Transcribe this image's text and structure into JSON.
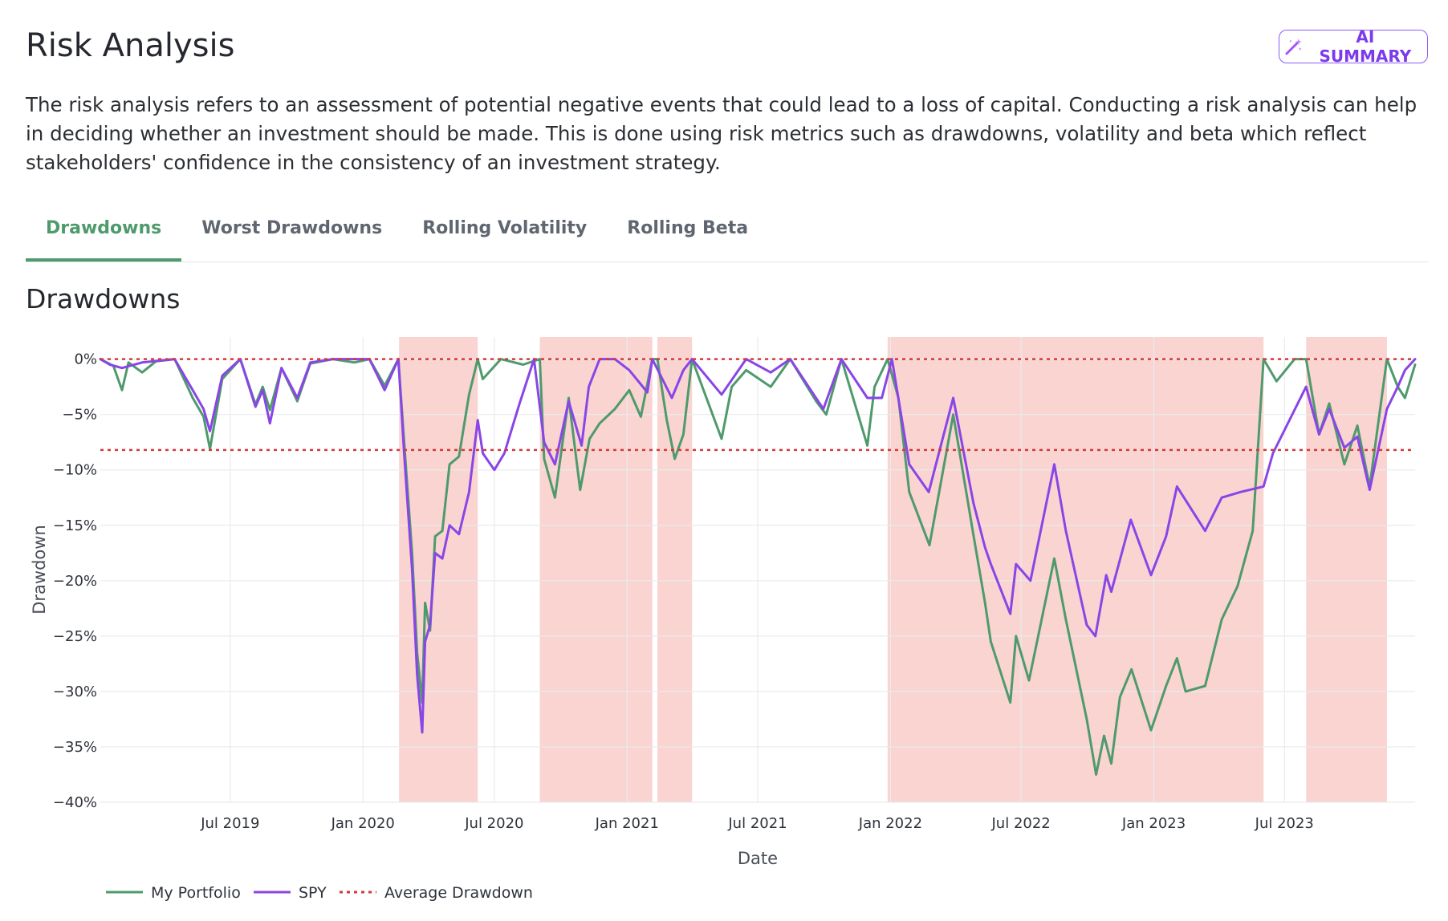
{
  "header": {
    "title": "Risk Analysis",
    "ai_button_label": "AI SUMMARY",
    "ai_button_icon": "magic-wand-icon"
  },
  "intro": "The risk analysis refers to an assessment of potential negative events that could lead to a loss of capital. Conducting a risk analysis can help in deciding whether an investment should be made. This is done using risk metrics such as drawdowns, volatility and beta which reflect stakeholders' confidence in the consistency of an investment strategy.",
  "tabs": [
    {
      "label": "Drawdowns",
      "active": true
    },
    {
      "label": "Worst Drawdowns",
      "active": false
    },
    {
      "label": "Rolling Volatility",
      "active": false
    },
    {
      "label": "Rolling Beta",
      "active": false
    }
  ],
  "section_title": "Drawdowns",
  "colors": {
    "portfolio": "#4f9a6c",
    "spy": "#8a45e6",
    "average": "#d23a3a",
    "shade": "#f7c5c2",
    "accent": "#4f9a6c",
    "ai": "#7c3aed"
  },
  "chart_data": {
    "type": "line",
    "xlabel": "Date",
    "ylabel": "Drawdown",
    "x_range": [
      "2019-01-02",
      "2023-12-29"
    ],
    "ylim": [
      -40,
      2
    ],
    "y_ticks": [
      0,
      -5,
      -10,
      -15,
      -20,
      -25,
      -30,
      -35,
      -40
    ],
    "y_tick_labels": [
      "0%",
      "−5%",
      "−10%",
      "−15%",
      "−20%",
      "−25%",
      "−30%",
      "−35%",
      "−40%"
    ],
    "x_ticks": [
      "2019-07-01",
      "2020-01-01",
      "2020-07-01",
      "2021-01-01",
      "2021-07-01",
      "2022-01-01",
      "2022-07-01",
      "2023-01-01",
      "2023-07-01"
    ],
    "x_tick_labels": [
      "Jul 2019",
      "Jan 2020",
      "Jul 2020",
      "Jan 2021",
      "Jul 2021",
      "Jan 2022",
      "Jul 2022",
      "Jan 2023",
      "Jul 2023"
    ],
    "grid": true,
    "legend": "bottom-left",
    "average_drawdown": -8.2,
    "shaded_periods": [
      [
        "2020-02-20",
        "2020-06-08"
      ],
      [
        "2020-09-02",
        "2021-02-05"
      ],
      [
        "2021-02-12",
        "2021-04-01"
      ],
      [
        "2021-12-28",
        "2023-06-02"
      ],
      [
        "2023-07-31",
        "2023-11-20"
      ]
    ],
    "series": [
      {
        "name": "My Portfolio",
        "points": [
          [
            "2019-01-02",
            0
          ],
          [
            "2019-01-20",
            -0.6
          ],
          [
            "2019-02-01",
            -2.8
          ],
          [
            "2019-02-10",
            -0.3
          ],
          [
            "2019-03-01",
            -1.2
          ],
          [
            "2019-03-20",
            -0.2
          ],
          [
            "2019-04-15",
            0
          ],
          [
            "2019-05-10",
            -3.5
          ],
          [
            "2019-05-25",
            -5.2
          ],
          [
            "2019-06-03",
            -8.1
          ],
          [
            "2019-06-20",
            -1.8
          ],
          [
            "2019-07-15",
            0
          ],
          [
            "2019-08-05",
            -4.1
          ],
          [
            "2019-08-15",
            -2.5
          ],
          [
            "2019-08-25",
            -4.6
          ],
          [
            "2019-09-10",
            -0.8
          ],
          [
            "2019-10-02",
            -3.8
          ],
          [
            "2019-10-20",
            -0.4
          ],
          [
            "2019-11-20",
            0
          ],
          [
            "2019-12-20",
            -0.3
          ],
          [
            "2020-01-10",
            0
          ],
          [
            "2020-01-31",
            -2.4
          ],
          [
            "2020-02-19",
            0
          ],
          [
            "2020-02-27",
            -7.5
          ],
          [
            "2020-03-09",
            -17.5
          ],
          [
            "2020-03-16",
            -26.5
          ],
          [
            "2020-03-23",
            -31.0
          ],
          [
            "2020-03-27",
            -22.0
          ],
          [
            "2020-04-03",
            -24.5
          ],
          [
            "2020-04-10",
            -16.0
          ],
          [
            "2020-04-20",
            -15.5
          ],
          [
            "2020-04-30",
            -9.5
          ],
          [
            "2020-05-13",
            -8.8
          ],
          [
            "2020-05-27",
            -3.2
          ],
          [
            "2020-06-08",
            0
          ],
          [
            "2020-06-15",
            -1.8
          ],
          [
            "2020-07-10",
            0
          ],
          [
            "2020-08-10",
            -0.5
          ],
          [
            "2020-09-02",
            0
          ],
          [
            "2020-09-08",
            -9.0
          ],
          [
            "2020-09-23",
            -12.5
          ],
          [
            "2020-10-12",
            -3.5
          ],
          [
            "2020-10-28",
            -11.8
          ],
          [
            "2020-11-10",
            -7.2
          ],
          [
            "2020-11-24",
            -5.8
          ],
          [
            "2020-12-15",
            -4.5
          ],
          [
            "2021-01-04",
            -2.8
          ],
          [
            "2021-01-20",
            -5.2
          ],
          [
            "2021-02-05",
            0
          ],
          [
            "2021-02-12",
            0
          ],
          [
            "2021-02-25",
            -5.5
          ],
          [
            "2021-03-08",
            -9.0
          ],
          [
            "2021-03-20",
            -6.8
          ],
          [
            "2021-04-01",
            0
          ],
          [
            "2021-05-12",
            -7.2
          ],
          [
            "2021-05-26",
            -2.5
          ],
          [
            "2021-06-15",
            -1.0
          ],
          [
            "2021-07-19",
            -2.5
          ],
          [
            "2021-08-15",
            0
          ],
          [
            "2021-09-20",
            -3.8
          ],
          [
            "2021-10-04",
            -5.0
          ],
          [
            "2021-10-25",
            0
          ],
          [
            "2021-11-30",
            -7.8
          ],
          [
            "2021-12-10",
            -2.5
          ],
          [
            "2021-12-28",
            0
          ],
          [
            "2022-01-12",
            -3.5
          ],
          [
            "2022-01-27",
            -12.0
          ],
          [
            "2022-02-24",
            -16.8
          ],
          [
            "2022-03-29",
            -5.0
          ],
          [
            "2022-04-25",
            -15.5
          ],
          [
            "2022-05-12",
            -22.0
          ],
          [
            "2022-05-20",
            -25.5
          ],
          [
            "2022-06-16",
            -31.0
          ],
          [
            "2022-06-24",
            -25.0
          ],
          [
            "2022-07-12",
            -29.0
          ],
          [
            "2022-08-16",
            -18.0
          ],
          [
            "2022-09-01",
            -23.5
          ],
          [
            "2022-09-30",
            -32.5
          ],
          [
            "2022-10-13",
            -37.5
          ],
          [
            "2022-10-24",
            -34.0
          ],
          [
            "2022-11-03",
            -36.5
          ],
          [
            "2022-11-15",
            -30.5
          ],
          [
            "2022-12-01",
            -28.0
          ],
          [
            "2022-12-28",
            -33.5
          ],
          [
            "2023-01-18",
            -29.5
          ],
          [
            "2023-02-02",
            -27.0
          ],
          [
            "2023-02-14",
            -30.0
          ],
          [
            "2023-03-13",
            -29.5
          ],
          [
            "2023-04-05",
            -23.5
          ],
          [
            "2023-04-27",
            -20.5
          ],
          [
            "2023-05-18",
            -15.5
          ],
          [
            "2023-06-02",
            0
          ],
          [
            "2023-06-20",
            -2.0
          ],
          [
            "2023-07-15",
            0
          ],
          [
            "2023-07-31",
            0
          ],
          [
            "2023-08-18",
            -6.8
          ],
          [
            "2023-09-01",
            -4.0
          ],
          [
            "2023-09-22",
            -9.5
          ],
          [
            "2023-10-10",
            -6.0
          ],
          [
            "2023-10-27",
            -11.5
          ],
          [
            "2023-11-20",
            0
          ],
          [
            "2023-12-05",
            -2.5
          ],
          [
            "2023-12-15",
            -3.5
          ],
          [
            "2023-12-29",
            -0.5
          ]
        ]
      },
      {
        "name": "SPY",
        "points": [
          [
            "2019-01-02",
            0
          ],
          [
            "2019-01-15",
            -0.5
          ],
          [
            "2019-02-01",
            -0.8
          ],
          [
            "2019-03-01",
            -0.3
          ],
          [
            "2019-04-15",
            0
          ],
          [
            "2019-05-10",
            -2.8
          ],
          [
            "2019-05-25",
            -4.5
          ],
          [
            "2019-06-03",
            -6.5
          ],
          [
            "2019-06-20",
            -1.5
          ],
          [
            "2019-07-15",
            0
          ],
          [
            "2019-08-05",
            -4.3
          ],
          [
            "2019-08-15",
            -2.8
          ],
          [
            "2019-08-25",
            -5.8
          ],
          [
            "2019-09-10",
            -0.8
          ],
          [
            "2019-10-02",
            -3.5
          ],
          [
            "2019-10-20",
            -0.3
          ],
          [
            "2019-11-20",
            0
          ],
          [
            "2020-01-10",
            0
          ],
          [
            "2020-01-31",
            -2.8
          ],
          [
            "2020-02-19",
            0
          ],
          [
            "2020-02-27",
            -8.5
          ],
          [
            "2020-03-09",
            -19.0
          ],
          [
            "2020-03-16",
            -28.5
          ],
          [
            "2020-03-23",
            -33.7
          ],
          [
            "2020-03-27",
            -25.5
          ],
          [
            "2020-04-03",
            -24.0
          ],
          [
            "2020-04-10",
            -17.5
          ],
          [
            "2020-04-20",
            -18.0
          ],
          [
            "2020-04-30",
            -15.0
          ],
          [
            "2020-05-13",
            -15.8
          ],
          [
            "2020-05-27",
            -12.0
          ],
          [
            "2020-06-08",
            -5.5
          ],
          [
            "2020-06-15",
            -8.5
          ],
          [
            "2020-07-01",
            -10.0
          ],
          [
            "2020-07-15",
            -8.5
          ],
          [
            "2020-08-05",
            -4.0
          ],
          [
            "2020-08-25",
            0
          ],
          [
            "2020-09-08",
            -7.5
          ],
          [
            "2020-09-23",
            -9.5
          ],
          [
            "2020-10-12",
            -3.8
          ],
          [
            "2020-10-30",
            -7.8
          ],
          [
            "2020-11-09",
            -2.5
          ],
          [
            "2020-11-24",
            0
          ],
          [
            "2020-12-15",
            0
          ],
          [
            "2021-01-04",
            -1.0
          ],
          [
            "2021-01-29",
            -3.0
          ],
          [
            "2021-02-05",
            0
          ],
          [
            "2021-03-04",
            -3.5
          ],
          [
            "2021-03-20",
            -1.0
          ],
          [
            "2021-04-01",
            0
          ],
          [
            "2021-05-12",
            -3.2
          ],
          [
            "2021-06-15",
            0
          ],
          [
            "2021-07-19",
            -1.2
          ],
          [
            "2021-08-15",
            0
          ],
          [
            "2021-09-30",
            -4.5
          ],
          [
            "2021-10-25",
            0
          ],
          [
            "2021-11-30",
            -3.5
          ],
          [
            "2021-12-20",
            -3.5
          ],
          [
            "2022-01-03",
            0
          ],
          [
            "2022-01-27",
            -9.5
          ],
          [
            "2022-02-23",
            -12.0
          ],
          [
            "2022-03-29",
            -3.5
          ],
          [
            "2022-04-26",
            -13.0
          ],
          [
            "2022-05-12",
            -17.0
          ],
          [
            "2022-05-20",
            -18.5
          ],
          [
            "2022-06-16",
            -23.0
          ],
          [
            "2022-06-24",
            -18.5
          ],
          [
            "2022-07-14",
            -20.0
          ],
          [
            "2022-08-16",
            -9.5
          ],
          [
            "2022-09-01",
            -15.5
          ],
          [
            "2022-09-30",
            -24.0
          ],
          [
            "2022-10-12",
            -25.0
          ],
          [
            "2022-10-27",
            -19.5
          ],
          [
            "2022-11-03",
            -21.0
          ],
          [
            "2022-11-30",
            -14.5
          ],
          [
            "2022-12-28",
            -19.5
          ],
          [
            "2023-01-18",
            -16.0
          ],
          [
            "2023-02-02",
            -11.5
          ],
          [
            "2023-03-13",
            -15.5
          ],
          [
            "2023-04-05",
            -12.5
          ],
          [
            "2023-05-01",
            -12.0
          ],
          [
            "2023-06-02",
            -11.5
          ],
          [
            "2023-06-15",
            -8.5
          ],
          [
            "2023-07-31",
            -2.5
          ],
          [
            "2023-08-18",
            -6.8
          ],
          [
            "2023-09-01",
            -4.5
          ],
          [
            "2023-09-22",
            -8.0
          ],
          [
            "2023-10-10",
            -7.0
          ],
          [
            "2023-10-27",
            -11.8
          ],
          [
            "2023-11-20",
            -4.5
          ],
          [
            "2023-12-05",
            -2.5
          ],
          [
            "2023-12-15",
            -1.0
          ],
          [
            "2023-12-29",
            0
          ]
        ]
      },
      {
        "name": "Average Drawdown",
        "style": "dotted",
        "values": [
          -8.2
        ]
      }
    ]
  }
}
